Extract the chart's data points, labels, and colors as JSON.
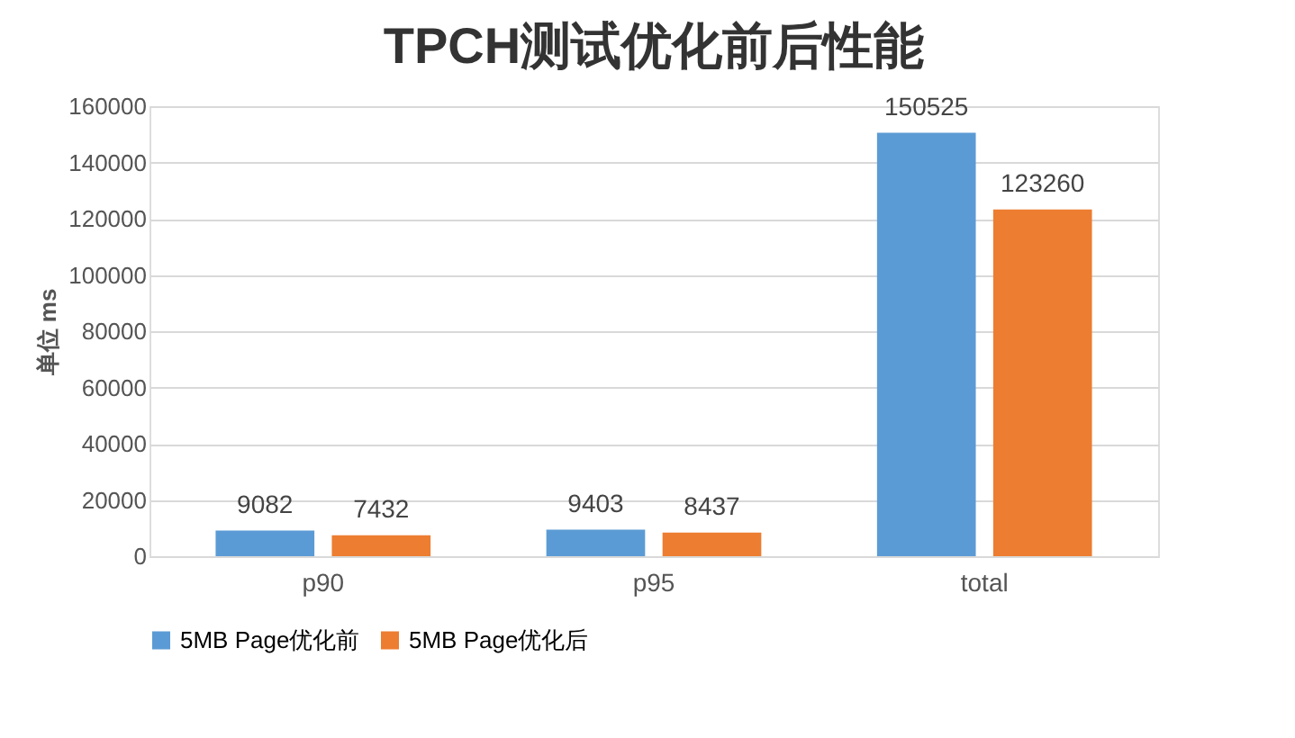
{
  "chart_data": {
    "type": "bar",
    "title": "TPCH测试优化前后性能",
    "ylabel": "单位 ms",
    "categories": [
      "p90",
      "p95",
      "total"
    ],
    "series": [
      {
        "name": "5MB Page优化前",
        "color": "#5b9bd5",
        "values": [
          9082,
          9403,
          150525
        ]
      },
      {
        "name": "5MB Page优化后",
        "color": "#ed7d31",
        "values": [
          7432,
          8437,
          123260
        ]
      }
    ],
    "ylim": [
      0,
      160000
    ],
    "yticks": [
      0,
      20000,
      40000,
      60000,
      80000,
      100000,
      120000,
      140000,
      160000
    ],
    "grid": "y",
    "legend": "bottom",
    "data_labels": true
  }
}
